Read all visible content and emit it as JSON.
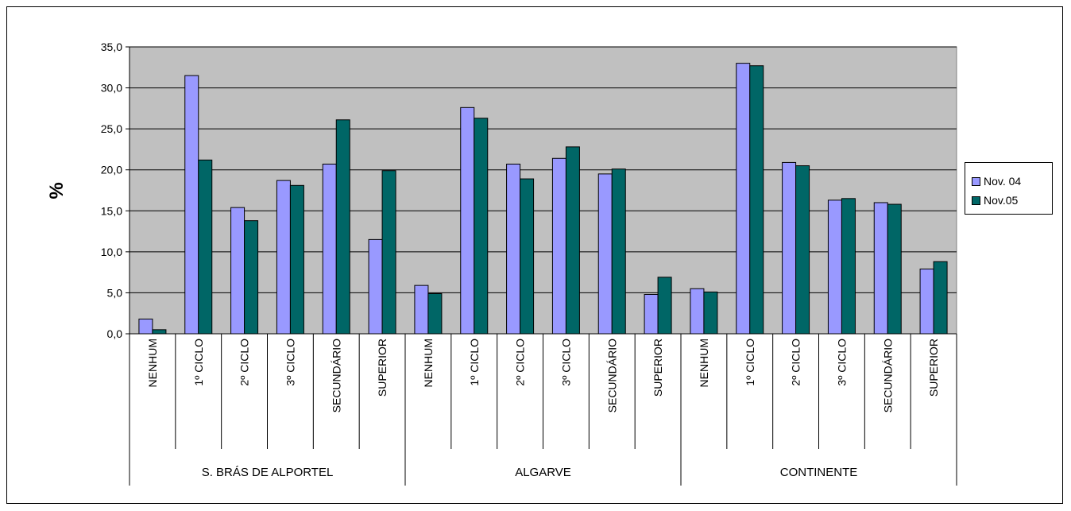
{
  "chart_data": {
    "type": "bar",
    "ylabel": "%",
    "ylim": [
      0,
      35
    ],
    "yticks": [
      "0,0",
      "5,0",
      "10,0",
      "15,0",
      "20,0",
      "25,0",
      "30,0",
      "35,0"
    ],
    "grid": true,
    "plot_background": "#c0c0c0",
    "legend_placement": "right",
    "groups": [
      {
        "label": "S. BRÁS DE ALPORTEL",
        "categories": [
          "NENHUM",
          "1º CICLO",
          "2º CICLO",
          "3º CICLO",
          "SECUNDÁRIO",
          "SUPERIOR"
        ]
      },
      {
        "label": "ALGARVE",
        "categories": [
          "NENHUM",
          "1º CICLO",
          "2º CICLO",
          "3º CICLO",
          "SECUNDÁRIO",
          "SUPERIOR"
        ]
      },
      {
        "label": "CONTINENTE",
        "categories": [
          "NENHUM",
          "1º CICLO",
          "2º CICLO",
          "3º CICLO",
          "SECUNDÁRIO",
          "SUPERIOR"
        ]
      }
    ],
    "series": [
      {
        "name": "Nov. 04",
        "color": "#9999ff",
        "values": [
          1.8,
          31.5,
          15.4,
          18.7,
          20.7,
          11.5,
          5.9,
          27.6,
          20.7,
          21.4,
          19.5,
          4.8,
          5.5,
          33.0,
          20.9,
          16.3,
          16.0,
          7.9
        ]
      },
      {
        "name": "Nov.05",
        "color": "#006666",
        "values": [
          0.5,
          21.2,
          13.8,
          18.1,
          26.1,
          19.9,
          4.9,
          26.3,
          18.9,
          22.8,
          20.1,
          6.9,
          5.1,
          32.7,
          20.5,
          16.5,
          15.8,
          8.8
        ]
      }
    ]
  }
}
